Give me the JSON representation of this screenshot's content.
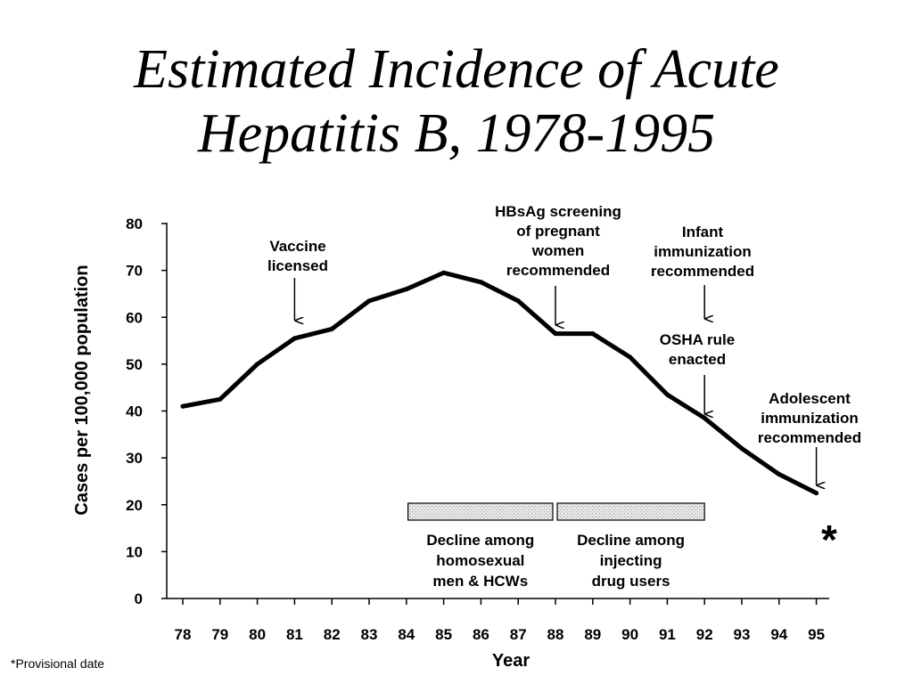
{
  "slide": {
    "title_line1": "Estimated Incidence of Acute",
    "title_line2": "Hepatitis B, 1978-1995",
    "footnote": "*Provisional date"
  },
  "chart_data": {
    "type": "line",
    "title": "Estimated Incidence of Acute Hepatitis B, 1978-1995",
    "xlabel": "Year",
    "ylabel": "Cases per 100,000 population",
    "categories": [
      "78",
      "79",
      "80",
      "81",
      "82",
      "83",
      "84",
      "85",
      "86",
      "87",
      "88",
      "89",
      "90",
      "91",
      "92",
      "93",
      "94",
      "95"
    ],
    "values": [
      41,
      42.5,
      50,
      55.5,
      57.5,
      63.5,
      66,
      69.5,
      67.5,
      63.5,
      56.5,
      56.5,
      51.5,
      43.5,
      38.5,
      32,
      26.5,
      22.5
    ],
    "ylim": [
      0,
      80
    ],
    "yticks": [
      0,
      10,
      20,
      30,
      40,
      50,
      60,
      70,
      80
    ],
    "grid": false,
    "end_marker": "*",
    "annotations": [
      {
        "lines": [
          "Vaccine",
          "licensed"
        ],
        "year": "81"
      },
      {
        "lines": [
          "HBsAg screening",
          "of pregnant",
          "women",
          "recommended"
        ],
        "year": "88"
      },
      {
        "lines": [
          "Infant",
          "immunization",
          "recommended"
        ],
        "year": "92"
      },
      {
        "lines": [
          "OSHA rule",
          "enacted"
        ],
        "year": "92"
      },
      {
        "lines": [
          "Adolescent",
          "immunization",
          "recommended"
        ],
        "year": "95"
      }
    ],
    "period_bars": [
      {
        "label_lines": [
          "Decline among",
          "homosexual",
          "men & HCWs"
        ],
        "from": "85",
        "to": "88"
      },
      {
        "label_lines": [
          "Decline among",
          "injecting",
          "drug users"
        ],
        "from": "88",
        "to": "92"
      }
    ]
  }
}
